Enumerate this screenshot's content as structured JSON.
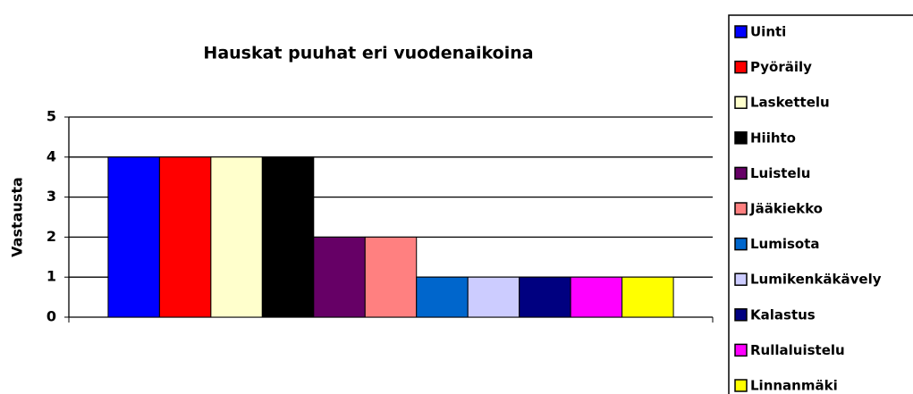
{
  "chart_data": {
    "type": "bar",
    "title": "Hauskat puuhat eri vuodenaikoina",
    "y_label": "Vastausta",
    "categories": [
      null
    ],
    "series": [
      {
        "name": "Uinti",
        "color": "#0000ff",
        "values": [
          4
        ]
      },
      {
        "name": "Pyöräily",
        "color": "#ff0000",
        "values": [
          4
        ]
      },
      {
        "name": "Laskettelu",
        "color": "#ffffcc",
        "values": [
          4
        ]
      },
      {
        "name": "Hiihto",
        "color": "#000000",
        "values": [
          4
        ]
      },
      {
        "name": "Luistelu",
        "color": "#660066",
        "values": [
          2
        ]
      },
      {
        "name": "Jääkiekko",
        "color": "#ff8080",
        "values": [
          2
        ]
      },
      {
        "name": "Lumisota",
        "color": "#0066cc",
        "values": [
          1
        ]
      },
      {
        "name": "Lumikenkäkävely",
        "color": "#ccccff",
        "values": [
          1
        ]
      },
      {
        "name": "Kalastus",
        "color": "#000080",
        "values": [
          1
        ]
      },
      {
        "name": "Rullaluistelu",
        "color": "#ff00ff",
        "values": [
          1
        ]
      },
      {
        "name": "Linnanmäki",
        "color": "#ffff00",
        "values": [
          1
        ]
      }
    ],
    "ylim": [
      0,
      5
    ],
    "yticks": [
      0,
      1,
      2,
      3,
      4,
      5
    ],
    "grid": true,
    "legend": "right"
  }
}
